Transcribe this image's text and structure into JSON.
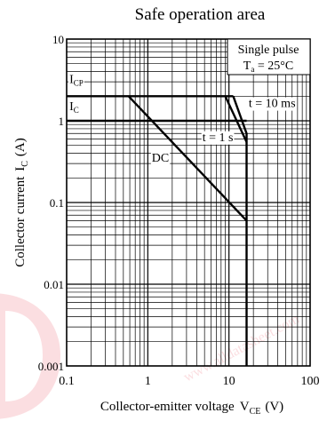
{
  "chart_data": {
    "type": "line",
    "title": "Safe operation area",
    "xlabel": "Collector-emitter voltage",
    "xlabel_symbol": "V",
    "xlabel_sub": "CE",
    "xlabel_unit": "(V)",
    "ylabel": "Collector current",
    "ylabel_symbol": "I",
    "ylabel_sub": "C",
    "ylabel_unit": "(A)",
    "x_scale": "log",
    "y_scale": "log",
    "xlim": [
      0.1,
      100
    ],
    "ylim": [
      0.001,
      10
    ],
    "x_ticks": [
      {
        "value": 0.1,
        "label": "0.1"
      },
      {
        "value": 1,
        "label": "1"
      },
      {
        "value": 10,
        "label": "10"
      },
      {
        "value": 100,
        "label": "100"
      }
    ],
    "y_ticks": [
      {
        "value": 0.001,
        "label": "0.001"
      },
      {
        "value": 0.01,
        "label": "0.01"
      },
      {
        "value": 0.1,
        "label": "0.1"
      },
      {
        "value": 1,
        "label": "1"
      },
      {
        "value": 10,
        "label": "10"
      }
    ],
    "grid": true,
    "legend_box": {
      "line1": "Single pulse",
      "line2_prefix": "T",
      "line2_sub": "a",
      "line2_rest": " = 25°C",
      "placement": "top-right"
    },
    "series": [
      {
        "id": "icp",
        "x": [
          0.1,
          11.3
        ],
        "y": [
          2,
          2
        ]
      },
      {
        "id": "ic",
        "x": [
          0.1,
          16.5
        ],
        "y": [
          1,
          1
        ]
      },
      {
        "id": "dc",
        "x": [
          0.58,
          16.5
        ],
        "y": [
          2,
          0.06
        ]
      },
      {
        "id": "t1s",
        "x": [
          9.0,
          16.5
        ],
        "y": [
          2,
          0.55
        ]
      },
      {
        "id": "t10ms",
        "x": [
          11.3,
          16.5
        ],
        "y": [
          2,
          0.7
        ]
      },
      {
        "id": "vceo",
        "x": [
          16.5,
          16.5
        ],
        "y": [
          0.001,
          0.7
        ]
      }
    ],
    "annotations": [
      {
        "id": "icp-label",
        "symbol": "I",
        "sub": "CP",
        "x": 0.108,
        "y": 2.9
      },
      {
        "id": "ic-label",
        "symbol": "I",
        "sub": "C",
        "x": 0.108,
        "y": 1.35
      },
      {
        "id": "t10ms-label",
        "text": "t = 10 ms",
        "x": 17.5,
        "y": 1.47
      },
      {
        "id": "t1s-label",
        "text": "t = 1 s",
        "x": 4.7,
        "y": 0.565
      },
      {
        "id": "dc-label",
        "text": "DC",
        "x": 1.12,
        "y": 0.315
      }
    ]
  },
  "watermark": {
    "logo": "",
    "text": "www.alldatasheet.com"
  }
}
